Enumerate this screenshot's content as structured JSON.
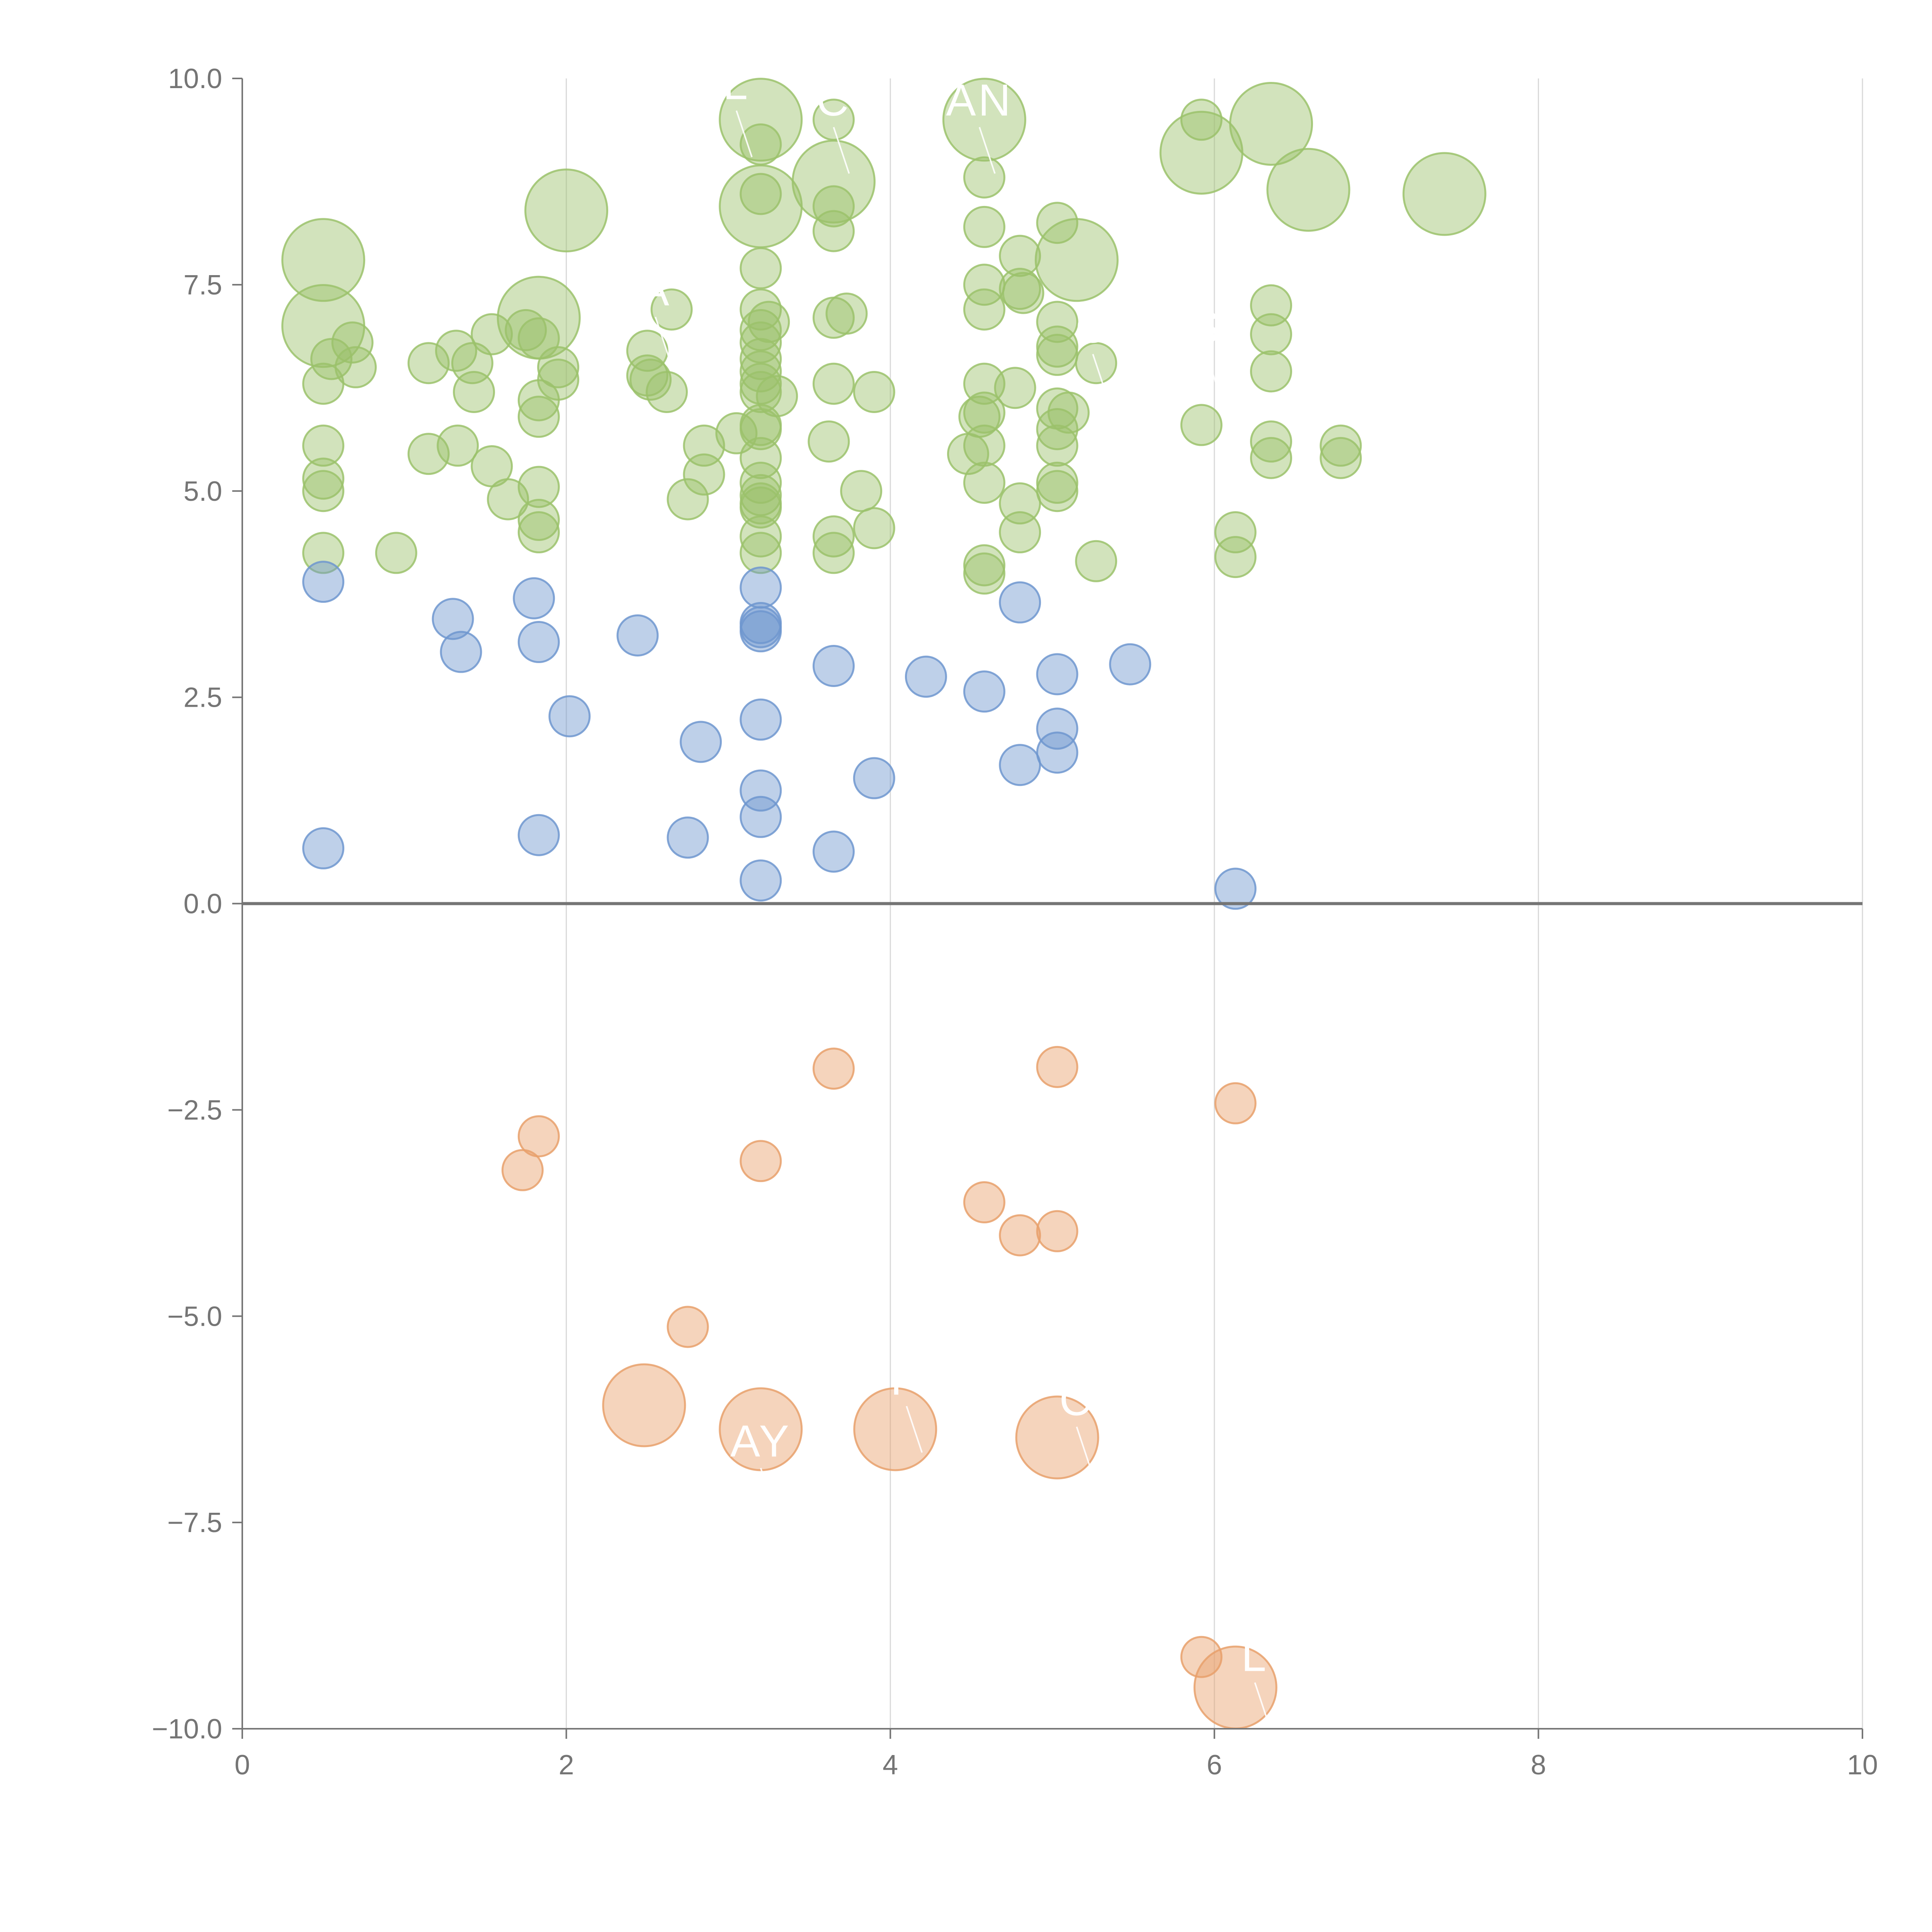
{
  "chart_data": {
    "type": "scatter",
    "title": "",
    "xlabel": "",
    "ylabel": "",
    "xlim": [
      0,
      10
    ],
    "ylim": [
      -10,
      10
    ],
    "grid": "vertical",
    "x_ticks": [
      0,
      2,
      4,
      6,
      8,
      10
    ],
    "y_ticks": [
      -10,
      -7.5,
      -5,
      -2.5,
      0,
      2.5,
      5,
      7.5,
      10
    ],
    "x_tick_labels": [
      "0",
      "2",
      "4",
      "6",
      "8",
      "10"
    ],
    "y_tick_labels": [
      "−10.0",
      "−7.5",
      "−5.0",
      "−2.5",
      "0.0",
      "2.5",
      "5.0",
      "7.5",
      "10.0"
    ],
    "colors": {
      "high": "#9bc26b",
      "mid": "#6f97cf",
      "low": "#e8a06b"
    },
    "series": [
      {
        "name": "high",
        "color": "#9bc26b",
        "points": [
          {
            "x": 0.5,
            "y": 7.8,
            "s": 3
          },
          {
            "x": 0.5,
            "y": 7.0,
            "s": 3
          },
          {
            "x": 0.55,
            "y": 6.6,
            "s": 1
          },
          {
            "x": 0.5,
            "y": 6.3,
            "s": 1
          },
          {
            "x": 0.68,
            "y": 6.8,
            "s": 1
          },
          {
            "x": 0.7,
            "y": 6.5,
            "s": 1
          },
          {
            "x": 0.5,
            "y": 5.55,
            "s": 1
          },
          {
            "x": 0.5,
            "y": 5.15,
            "s": 1
          },
          {
            "x": 0.5,
            "y": 5.0,
            "s": 1
          },
          {
            "x": 0.5,
            "y": 4.25,
            "s": 1
          },
          {
            "x": 0.95,
            "y": 4.25,
            "s": 1
          },
          {
            "x": 1.15,
            "y": 6.55,
            "s": 1
          },
          {
            "x": 1.32,
            "y": 6.7,
            "s": 1
          },
          {
            "x": 1.42,
            "y": 6.55,
            "s": 1
          },
          {
            "x": 1.43,
            "y": 6.2,
            "s": 1
          },
          {
            "x": 1.54,
            "y": 6.9,
            "s": 1
          },
          {
            "x": 1.15,
            "y": 5.45,
            "s": 1
          },
          {
            "x": 1.33,
            "y": 5.55,
            "s": 1
          },
          {
            "x": 1.54,
            "y": 5.3,
            "s": 1
          },
          {
            "x": 1.64,
            "y": 4.9,
            "s": 1
          },
          {
            "x": 1.75,
            "y": 6.95,
            "s": 1
          },
          {
            "x": 1.83,
            "y": 7.1,
            "s": 3
          },
          {
            "x": 1.83,
            "y": 6.85,
            "s": 1
          },
          {
            "x": 1.83,
            "y": 6.1,
            "s": 1
          },
          {
            "x": 1.83,
            "y": 5.9,
            "s": 1
          },
          {
            "x": 1.83,
            "y": 5.05,
            "s": 1
          },
          {
            "x": 1.83,
            "y": 4.65,
            "s": 1
          },
          {
            "x": 1.83,
            "y": 4.5,
            "s": 1
          },
          {
            "x": 1.95,
            "y": 6.5,
            "s": 1
          },
          {
            "x": 1.95,
            "y": 6.35,
            "s": 1
          },
          {
            "x": 2.0,
            "y": 8.4,
            "s": 3
          },
          {
            "x": 2.5,
            "y": 6.7,
            "s": 1
          },
          {
            "x": 2.5,
            "y": 6.4,
            "s": 1
          },
          {
            "x": 2.52,
            "y": 6.35,
            "s": 1
          },
          {
            "x": 2.62,
            "y": 6.2,
            "s": 1
          },
          {
            "x": 2.65,
            "y": 7.2,
            "s": 1
          },
          {
            "x": 2.75,
            "y": 4.9,
            "s": 1
          },
          {
            "x": 2.85,
            "y": 5.55,
            "s": 1
          },
          {
            "x": 2.85,
            "y": 5.2,
            "s": 1
          },
          {
            "x": 3.05,
            "y": 5.7,
            "s": 1
          },
          {
            "x": 3.2,
            "y": 9.5,
            "s": 3
          },
          {
            "x": 3.2,
            "y": 9.2,
            "s": 1
          },
          {
            "x": 3.2,
            "y": 8.6,
            "s": 1
          },
          {
            "x": 3.2,
            "y": 8.45,
            "s": 3
          },
          {
            "x": 3.2,
            "y": 7.7,
            "s": 1
          },
          {
            "x": 3.2,
            "y": 7.2,
            "s": 1
          },
          {
            "x": 3.2,
            "y": 6.95,
            "s": 1
          },
          {
            "x": 3.25,
            "y": 7.05,
            "s": 1
          },
          {
            "x": 3.2,
            "y": 6.8,
            "s": 1
          },
          {
            "x": 3.2,
            "y": 6.6,
            "s": 1
          },
          {
            "x": 3.2,
            "y": 6.45,
            "s": 1
          },
          {
            "x": 3.2,
            "y": 6.3,
            "s": 1
          },
          {
            "x": 3.2,
            "y": 6.2,
            "s": 1
          },
          {
            "x": 3.3,
            "y": 6.15,
            "s": 1
          },
          {
            "x": 3.2,
            "y": 5.8,
            "s": 1
          },
          {
            "x": 3.2,
            "y": 5.75,
            "s": 1
          },
          {
            "x": 3.2,
            "y": 5.4,
            "s": 1
          },
          {
            "x": 3.2,
            "y": 5.1,
            "s": 1
          },
          {
            "x": 3.2,
            "y": 4.95,
            "s": 1
          },
          {
            "x": 3.2,
            "y": 4.85,
            "s": 1
          },
          {
            "x": 3.2,
            "y": 4.8,
            "s": 1
          },
          {
            "x": 3.2,
            "y": 4.45,
            "s": 1
          },
          {
            "x": 3.2,
            "y": 4.25,
            "s": 1
          },
          {
            "x": 3.65,
            "y": 9.5,
            "s": 1
          },
          {
            "x": 3.65,
            "y": 8.75,
            "s": 3
          },
          {
            "x": 3.65,
            "y": 8.45,
            "s": 1
          },
          {
            "x": 3.65,
            "y": 8.15,
            "s": 1
          },
          {
            "x": 3.65,
            "y": 7.1,
            "s": 1
          },
          {
            "x": 3.73,
            "y": 7.15,
            "s": 1
          },
          {
            "x": 3.65,
            "y": 6.3,
            "s": 1
          },
          {
            "x": 3.62,
            "y": 5.6,
            "s": 1
          },
          {
            "x": 3.65,
            "y": 4.45,
            "s": 1
          },
          {
            "x": 3.65,
            "y": 4.25,
            "s": 1
          },
          {
            "x": 3.82,
            "y": 5.0,
            "s": 1
          },
          {
            "x": 3.9,
            "y": 6.2,
            "s": 1
          },
          {
            "x": 3.9,
            "y": 4.55,
            "s": 1
          },
          {
            "x": 4.58,
            "y": 9.5,
            "s": 3
          },
          {
            "x": 4.58,
            "y": 8.8,
            "s": 1
          },
          {
            "x": 4.58,
            "y": 8.2,
            "s": 1
          },
          {
            "x": 4.58,
            "y": 7.5,
            "s": 1
          },
          {
            "x": 4.58,
            "y": 7.2,
            "s": 1
          },
          {
            "x": 4.58,
            "y": 6.3,
            "s": 1
          },
          {
            "x": 4.55,
            "y": 5.9,
            "s": 1
          },
          {
            "x": 4.58,
            "y": 5.95,
            "s": 1
          },
          {
            "x": 4.58,
            "y": 5.55,
            "s": 1
          },
          {
            "x": 4.48,
            "y": 5.45,
            "s": 1
          },
          {
            "x": 4.58,
            "y": 5.1,
            "s": 1
          },
          {
            "x": 4.58,
            "y": 4.1,
            "s": 1
          },
          {
            "x": 4.58,
            "y": 4.0,
            "s": 1
          },
          {
            "x": 4.8,
            "y": 7.85,
            "s": 1
          },
          {
            "x": 4.8,
            "y": 7.45,
            "s": 1
          },
          {
            "x": 4.82,
            "y": 7.4,
            "s": 1
          },
          {
            "x": 4.77,
            "y": 6.25,
            "s": 1
          },
          {
            "x": 4.8,
            "y": 4.85,
            "s": 1
          },
          {
            "x": 4.8,
            "y": 4.5,
            "s": 1
          },
          {
            "x": 5.03,
            "y": 8.25,
            "s": 1
          },
          {
            "x": 5.15,
            "y": 7.8,
            "s": 3
          },
          {
            "x": 5.03,
            "y": 7.05,
            "s": 1
          },
          {
            "x": 5.03,
            "y": 6.75,
            "s": 1
          },
          {
            "x": 5.03,
            "y": 6.65,
            "s": 1
          },
          {
            "x": 5.03,
            "y": 6.0,
            "s": 1
          },
          {
            "x": 5.03,
            "y": 5.75,
            "s": 1
          },
          {
            "x": 5.03,
            "y": 5.55,
            "s": 1
          },
          {
            "x": 5.1,
            "y": 5.95,
            "s": 1
          },
          {
            "x": 5.03,
            "y": 5.1,
            "s": 1
          },
          {
            "x": 5.03,
            "y": 5.0,
            "s": 1
          },
          {
            "x": 5.27,
            "y": 6.55,
            "s": 1
          },
          {
            "x": 5.27,
            "y": 4.15,
            "s": 1
          },
          {
            "x": 5.92,
            "y": 9.5,
            "s": 1
          },
          {
            "x": 5.92,
            "y": 9.1,
            "s": 3
          },
          {
            "x": 5.92,
            "y": 5.8,
            "s": 1
          },
          {
            "x": 6.35,
            "y": 9.45,
            "s": 3
          },
          {
            "x": 6.58,
            "y": 8.65,
            "s": 3
          },
          {
            "x": 6.35,
            "y": 7.25,
            "s": 1
          },
          {
            "x": 6.35,
            "y": 6.9,
            "s": 1
          },
          {
            "x": 6.35,
            "y": 6.45,
            "s": 1
          },
          {
            "x": 6.35,
            "y": 5.6,
            "s": 1
          },
          {
            "x": 6.35,
            "y": 5.4,
            "s": 1
          },
          {
            "x": 6.13,
            "y": 4.5,
            "s": 1
          },
          {
            "x": 6.13,
            "y": 4.2,
            "s": 1
          },
          {
            "x": 6.78,
            "y": 5.55,
            "s": 1
          },
          {
            "x": 6.78,
            "y": 5.4,
            "s": 1
          },
          {
            "x": 7.42,
            "y": 8.6,
            "s": 3
          }
        ]
      },
      {
        "name": "mid",
        "color": "#6f97cf",
        "points": [
          {
            "x": 0.5,
            "y": 3.9,
            "s": 1
          },
          {
            "x": 0.5,
            "y": 0.67,
            "s": 1
          },
          {
            "x": 1.3,
            "y": 3.45,
            "s": 1
          },
          {
            "x": 1.35,
            "y": 3.05,
            "s": 1
          },
          {
            "x": 1.8,
            "y": 3.7,
            "s": 1
          },
          {
            "x": 1.83,
            "y": 3.17,
            "s": 1
          },
          {
            "x": 1.83,
            "y": 0.83,
            "s": 1
          },
          {
            "x": 2.02,
            "y": 2.27,
            "s": 1
          },
          {
            "x": 2.44,
            "y": 3.25,
            "s": 1
          },
          {
            "x": 2.75,
            "y": 0.8,
            "s": 1
          },
          {
            "x": 2.83,
            "y": 1.96,
            "s": 1
          },
          {
            "x": 3.2,
            "y": 3.83,
            "s": 1
          },
          {
            "x": 3.2,
            "y": 3.4,
            "s": 1
          },
          {
            "x": 3.2,
            "y": 3.35,
            "s": 1
          },
          {
            "x": 3.2,
            "y": 3.3,
            "s": 1
          },
          {
            "x": 3.2,
            "y": 2.23,
            "s": 1
          },
          {
            "x": 3.2,
            "y": 1.37,
            "s": 1
          },
          {
            "x": 3.2,
            "y": 1.05,
            "s": 1
          },
          {
            "x": 3.2,
            "y": 0.28,
            "s": 1
          },
          {
            "x": 3.65,
            "y": 2.88,
            "s": 1
          },
          {
            "x": 3.65,
            "y": 0.63,
            "s": 1
          },
          {
            "x": 3.9,
            "y": 1.52,
            "s": 1
          },
          {
            "x": 4.22,
            "y": 2.75,
            "s": 1
          },
          {
            "x": 4.58,
            "y": 2.57,
            "s": 1
          },
          {
            "x": 4.8,
            "y": 3.65,
            "s": 1
          },
          {
            "x": 4.8,
            "y": 1.68,
            "s": 1
          },
          {
            "x": 5.03,
            "y": 2.78,
            "s": 1
          },
          {
            "x": 5.03,
            "y": 2.12,
            "s": 1
          },
          {
            "x": 5.03,
            "y": 1.83,
            "s": 1
          },
          {
            "x": 5.48,
            "y": 2.9,
            "s": 1
          },
          {
            "x": 6.13,
            "y": 0.18,
            "s": 1
          }
        ]
      },
      {
        "name": "low",
        "color": "#e8a06b",
        "points": [
          {
            "x": 1.83,
            "y": -2.82,
            "s": 1
          },
          {
            "x": 1.73,
            "y": -3.23,
            "s": 1
          },
          {
            "x": 3.2,
            "y": -3.12,
            "s": 1
          },
          {
            "x": 3.65,
            "y": -2.0,
            "s": 1
          },
          {
            "x": 4.58,
            "y": -3.62,
            "s": 1
          },
          {
            "x": 4.8,
            "y": -4.02,
            "s": 1
          },
          {
            "x": 5.03,
            "y": -1.98,
            "s": 1
          },
          {
            "x": 5.03,
            "y": -3.97,
            "s": 1
          },
          {
            "x": 6.13,
            "y": -2.42,
            "s": 1
          },
          {
            "x": 2.75,
            "y": -5.13,
            "s": 1
          },
          {
            "x": 2.48,
            "y": -6.08,
            "s": 3
          },
          {
            "x": 3.2,
            "y": -6.37,
            "s": 3
          },
          {
            "x": 4.03,
            "y": -6.37,
            "s": 3
          },
          {
            "x": 5.03,
            "y": -6.47,
            "s": 3
          },
          {
            "x": 5.92,
            "y": -9.13,
            "s": 1
          },
          {
            "x": 6.13,
            "y": -9.5,
            "s": 3
          }
        ]
      }
    ],
    "annotations": [
      {
        "text": "L",
        "x": 3.05,
        "y": 9.75
      },
      {
        "text": "C",
        "x": 3.65,
        "y": 9.55
      },
      {
        "text": "AN",
        "x": 4.55,
        "y": 9.55
      },
      {
        "text": "A",
        "x": 2.55,
        "y": 7.25
      },
      {
        "text": "C",
        "x": 5.25,
        "y": 6.8
      },
      {
        "text": "S",
        "x": 5.95,
        "y": 6.8
      },
      {
        "text": "AY",
        "x": 3.2,
        "y": -6.7
      },
      {
        "text": "P",
        "x": 4.1,
        "y": -5.95
      },
      {
        "text": "C",
        "x": 5.15,
        "y": -6.2
      },
      {
        "text": "L",
        "x": 6.25,
        "y": -9.3
      }
    ]
  }
}
